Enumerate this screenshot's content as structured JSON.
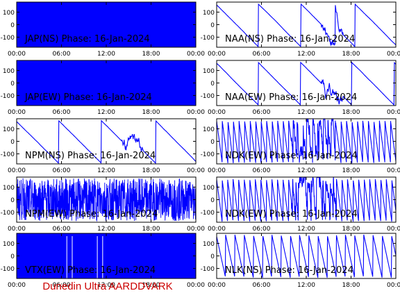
{
  "footer": "Dunedin Ultra AARDDVARK",
  "colors": {
    "trace": "#0000ff",
    "axis": "#000000",
    "footer": "#cc0000"
  },
  "xticks": [
    "00:00",
    "06:00",
    "12:00",
    "18:00",
    "00:00"
  ],
  "yticks": [
    100,
    0,
    -100
  ],
  "chart_data": [
    {
      "type": "line",
      "title": "JAP(NS) Phase: 16-Jan-2024",
      "ylim": [
        -180,
        180
      ],
      "xlim": [
        0,
        24
      ],
      "style": "filled"
    },
    {
      "type": "line",
      "title": "NAA(NS) Phase: 16-Jan-2024",
      "ylim": [
        -180,
        180
      ],
      "xlim": [
        0,
        24
      ],
      "style": "ramps-down"
    },
    {
      "type": "line",
      "title": "JAP(EW) Phase: 16-Jan-2024",
      "ylim": [
        -180,
        180
      ],
      "xlim": [
        0,
        24
      ],
      "style": "filled"
    },
    {
      "type": "line",
      "title": "NAA(EW) Phase: 16-Jan-2024",
      "ylim": [
        -180,
        180
      ],
      "xlim": [
        0,
        24
      ],
      "style": "ramps-down"
    },
    {
      "type": "line",
      "title": "NPM(NS) Phase: 16-Jan-2024",
      "ylim": [
        -180,
        180
      ],
      "xlim": [
        0,
        24
      ],
      "style": "ramps-down"
    },
    {
      "type": "line",
      "title": "NDK(EW) Phase: 16-Jan-2024",
      "ylim": [
        -180,
        180
      ],
      "xlim": [
        0,
        24
      ],
      "style": "dense-ramps"
    },
    {
      "type": "line",
      "title": "NPM(EW) Phase: 16-Jan-2024",
      "ylim": [
        -180,
        180
      ],
      "xlim": [
        0,
        24
      ],
      "style": "noise"
    },
    {
      "type": "line",
      "title": "NDK(EW) Phase: 16-Jan-2024",
      "ylim": [
        -180,
        180
      ],
      "xlim": [
        0,
        24
      ],
      "style": "dense-ramps"
    },
    {
      "type": "line",
      "title": "VTX(EW) Phase: 16-Jan-2024",
      "ylim": [
        -180,
        180
      ],
      "xlim": [
        0,
        24
      ],
      "style": "filled"
    },
    {
      "type": "line",
      "title": "NLK(NS) Phase: 16-Jan-2024",
      "ylim": [
        -180,
        180
      ],
      "xlim": [
        0,
        24
      ],
      "style": "sawtooth"
    }
  ]
}
